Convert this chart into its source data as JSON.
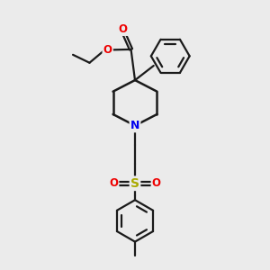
{
  "background_color": "#ebebeb",
  "bond_color": "#1a1a1a",
  "N_color": "#0000ee",
  "O_color": "#ee0000",
  "S_color": "#aaaa00",
  "figsize": [
    3.0,
    3.0
  ],
  "dpi": 100,
  "xlim": [
    0,
    10
  ],
  "ylim": [
    0,
    10
  ]
}
